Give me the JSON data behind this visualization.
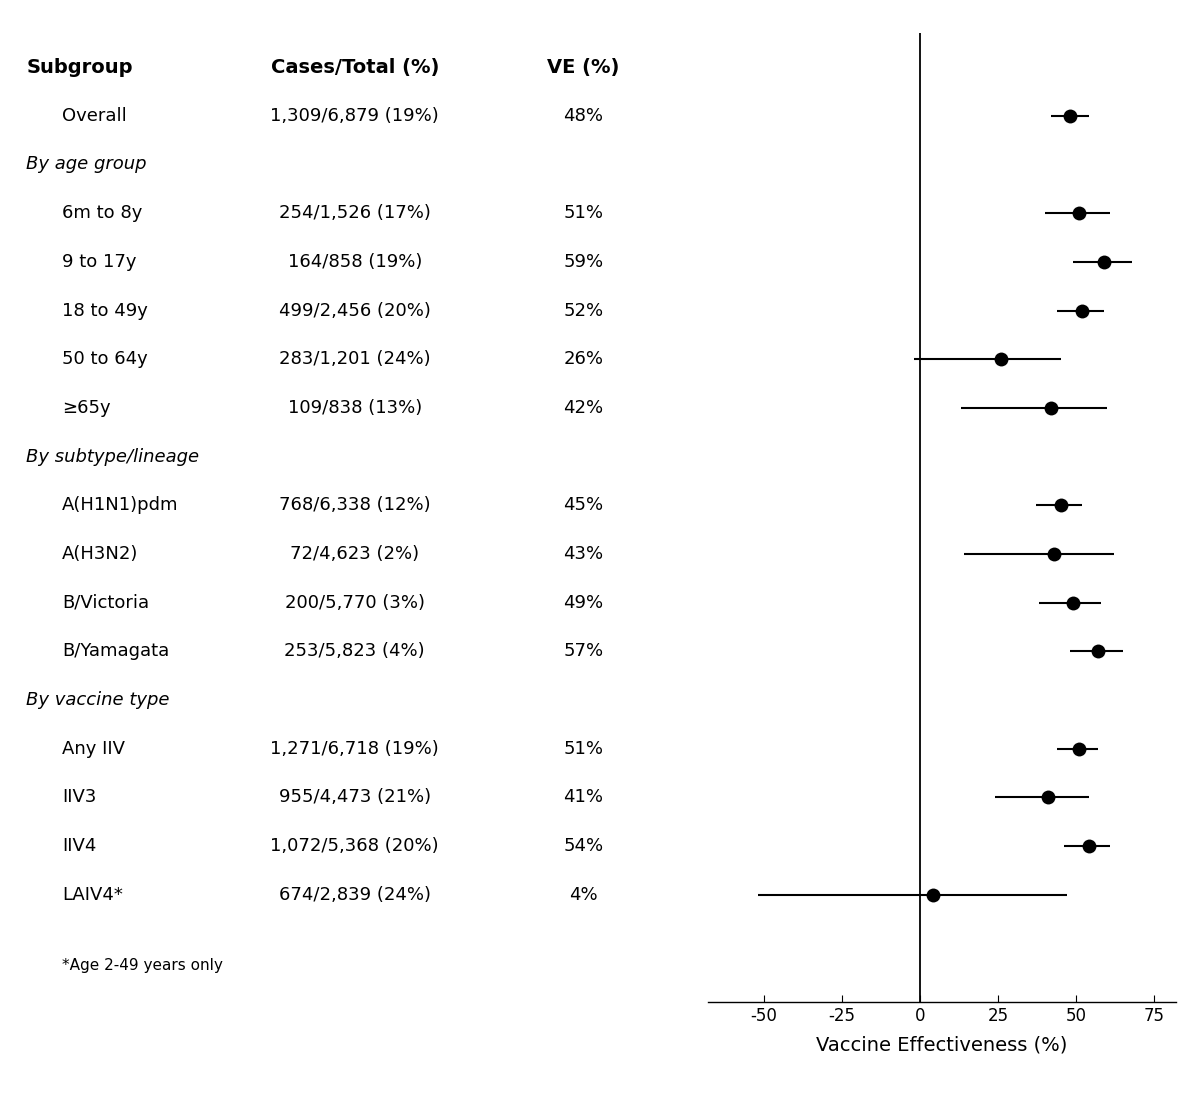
{
  "rows": [
    {
      "label": "Overall",
      "cases_total": "1,309/6,879 (19%)",
      "ve": "48%",
      "point": 48,
      "ci_low": 42,
      "ci_high": 54,
      "is_header": false
    },
    {
      "label": "By age group",
      "cases_total": "",
      "ve": "",
      "point": null,
      "ci_low": null,
      "ci_high": null,
      "is_header": true
    },
    {
      "label": "6m to 8y",
      "cases_total": "254/1,526 (17%)",
      "ve": "51%",
      "point": 51,
      "ci_low": 40,
      "ci_high": 61,
      "is_header": false
    },
    {
      "label": "9 to 17y",
      "cases_total": "164/858 (19%)",
      "ve": "59%",
      "point": 59,
      "ci_low": 49,
      "ci_high": 68,
      "is_header": false
    },
    {
      "label": "18 to 49y",
      "cases_total": "499/2,456 (20%)",
      "ve": "52%",
      "point": 52,
      "ci_low": 44,
      "ci_high": 59,
      "is_header": false
    },
    {
      "label": "50 to 64y",
      "cases_total": "283/1,201 (24%)",
      "ve": "26%",
      "point": 26,
      "ci_low": -2,
      "ci_high": 45,
      "is_header": false
    },
    {
      "label": "≥65y",
      "cases_total": "109/838 (13%)",
      "ve": "42%",
      "point": 42,
      "ci_low": 13,
      "ci_high": 60,
      "is_header": false
    },
    {
      "label": "By subtype/lineage",
      "cases_total": "",
      "ve": "",
      "point": null,
      "ci_low": null,
      "ci_high": null,
      "is_header": true
    },
    {
      "label": "A(H1N1)pdm",
      "cases_total": "768/6,338 (12%)",
      "ve": "45%",
      "point": 45,
      "ci_low": 37,
      "ci_high": 52,
      "is_header": false
    },
    {
      "label": "A(H3N2)",
      "cases_total": "72/4,623 (2%)",
      "ve": "43%",
      "point": 43,
      "ci_low": 14,
      "ci_high": 62,
      "is_header": false
    },
    {
      "label": "B/Victoria",
      "cases_total": "200/5,770 (3%)",
      "ve": "49%",
      "point": 49,
      "ci_low": 38,
      "ci_high": 58,
      "is_header": false
    },
    {
      "label": "B/Yamagata",
      "cases_total": "253/5,823 (4%)",
      "ve": "57%",
      "point": 57,
      "ci_low": 48,
      "ci_high": 65,
      "is_header": false
    },
    {
      "label": "By vaccine type",
      "cases_total": "",
      "ve": "",
      "point": null,
      "ci_low": null,
      "ci_high": null,
      "is_header": true
    },
    {
      "label": "Any IIV",
      "cases_total": "1,271/6,718 (19%)",
      "ve": "51%",
      "point": 51,
      "ci_low": 44,
      "ci_high": 57,
      "is_header": false
    },
    {
      "label": "IIV3",
      "cases_total": "955/4,473 (21%)",
      "ve": "41%",
      "point": 41,
      "ci_low": 24,
      "ci_high": 54,
      "is_header": false
    },
    {
      "label": "IIV4",
      "cases_total": "1,072/5,368 (20%)",
      "ve": "54%",
      "point": 54,
      "ci_low": 46,
      "ci_high": 61,
      "is_header": false
    },
    {
      "label": "LAIV4*",
      "cases_total": "674/2,839 (24%)",
      "ve": "4%",
      "point": 4,
      "ci_low": -52,
      "ci_high": 47,
      "is_header": false
    }
  ],
  "col_headers": [
    "Subgroup",
    "Cases/Total (%)",
    "VE (%)"
  ],
  "xlabel": "Vaccine Effectiveness (%)",
  "xlim": [
    -68,
    82
  ],
  "xticks": [
    -50,
    -25,
    0,
    25,
    50,
    75
  ],
  "footnote": "*Age 2-49 years only",
  "background_color": "#ffffff",
  "text_color": "#000000",
  "point_color": "#000000",
  "line_color": "#000000",
  "header_fontsize": 14,
  "data_fontsize": 13,
  "italic_fontsize": 13,
  "footnote_fontsize": 11,
  "xlabel_fontsize": 14,
  "tick_fontsize": 12,
  "marker_size": 10,
  "ci_linewidth": 1.5
}
